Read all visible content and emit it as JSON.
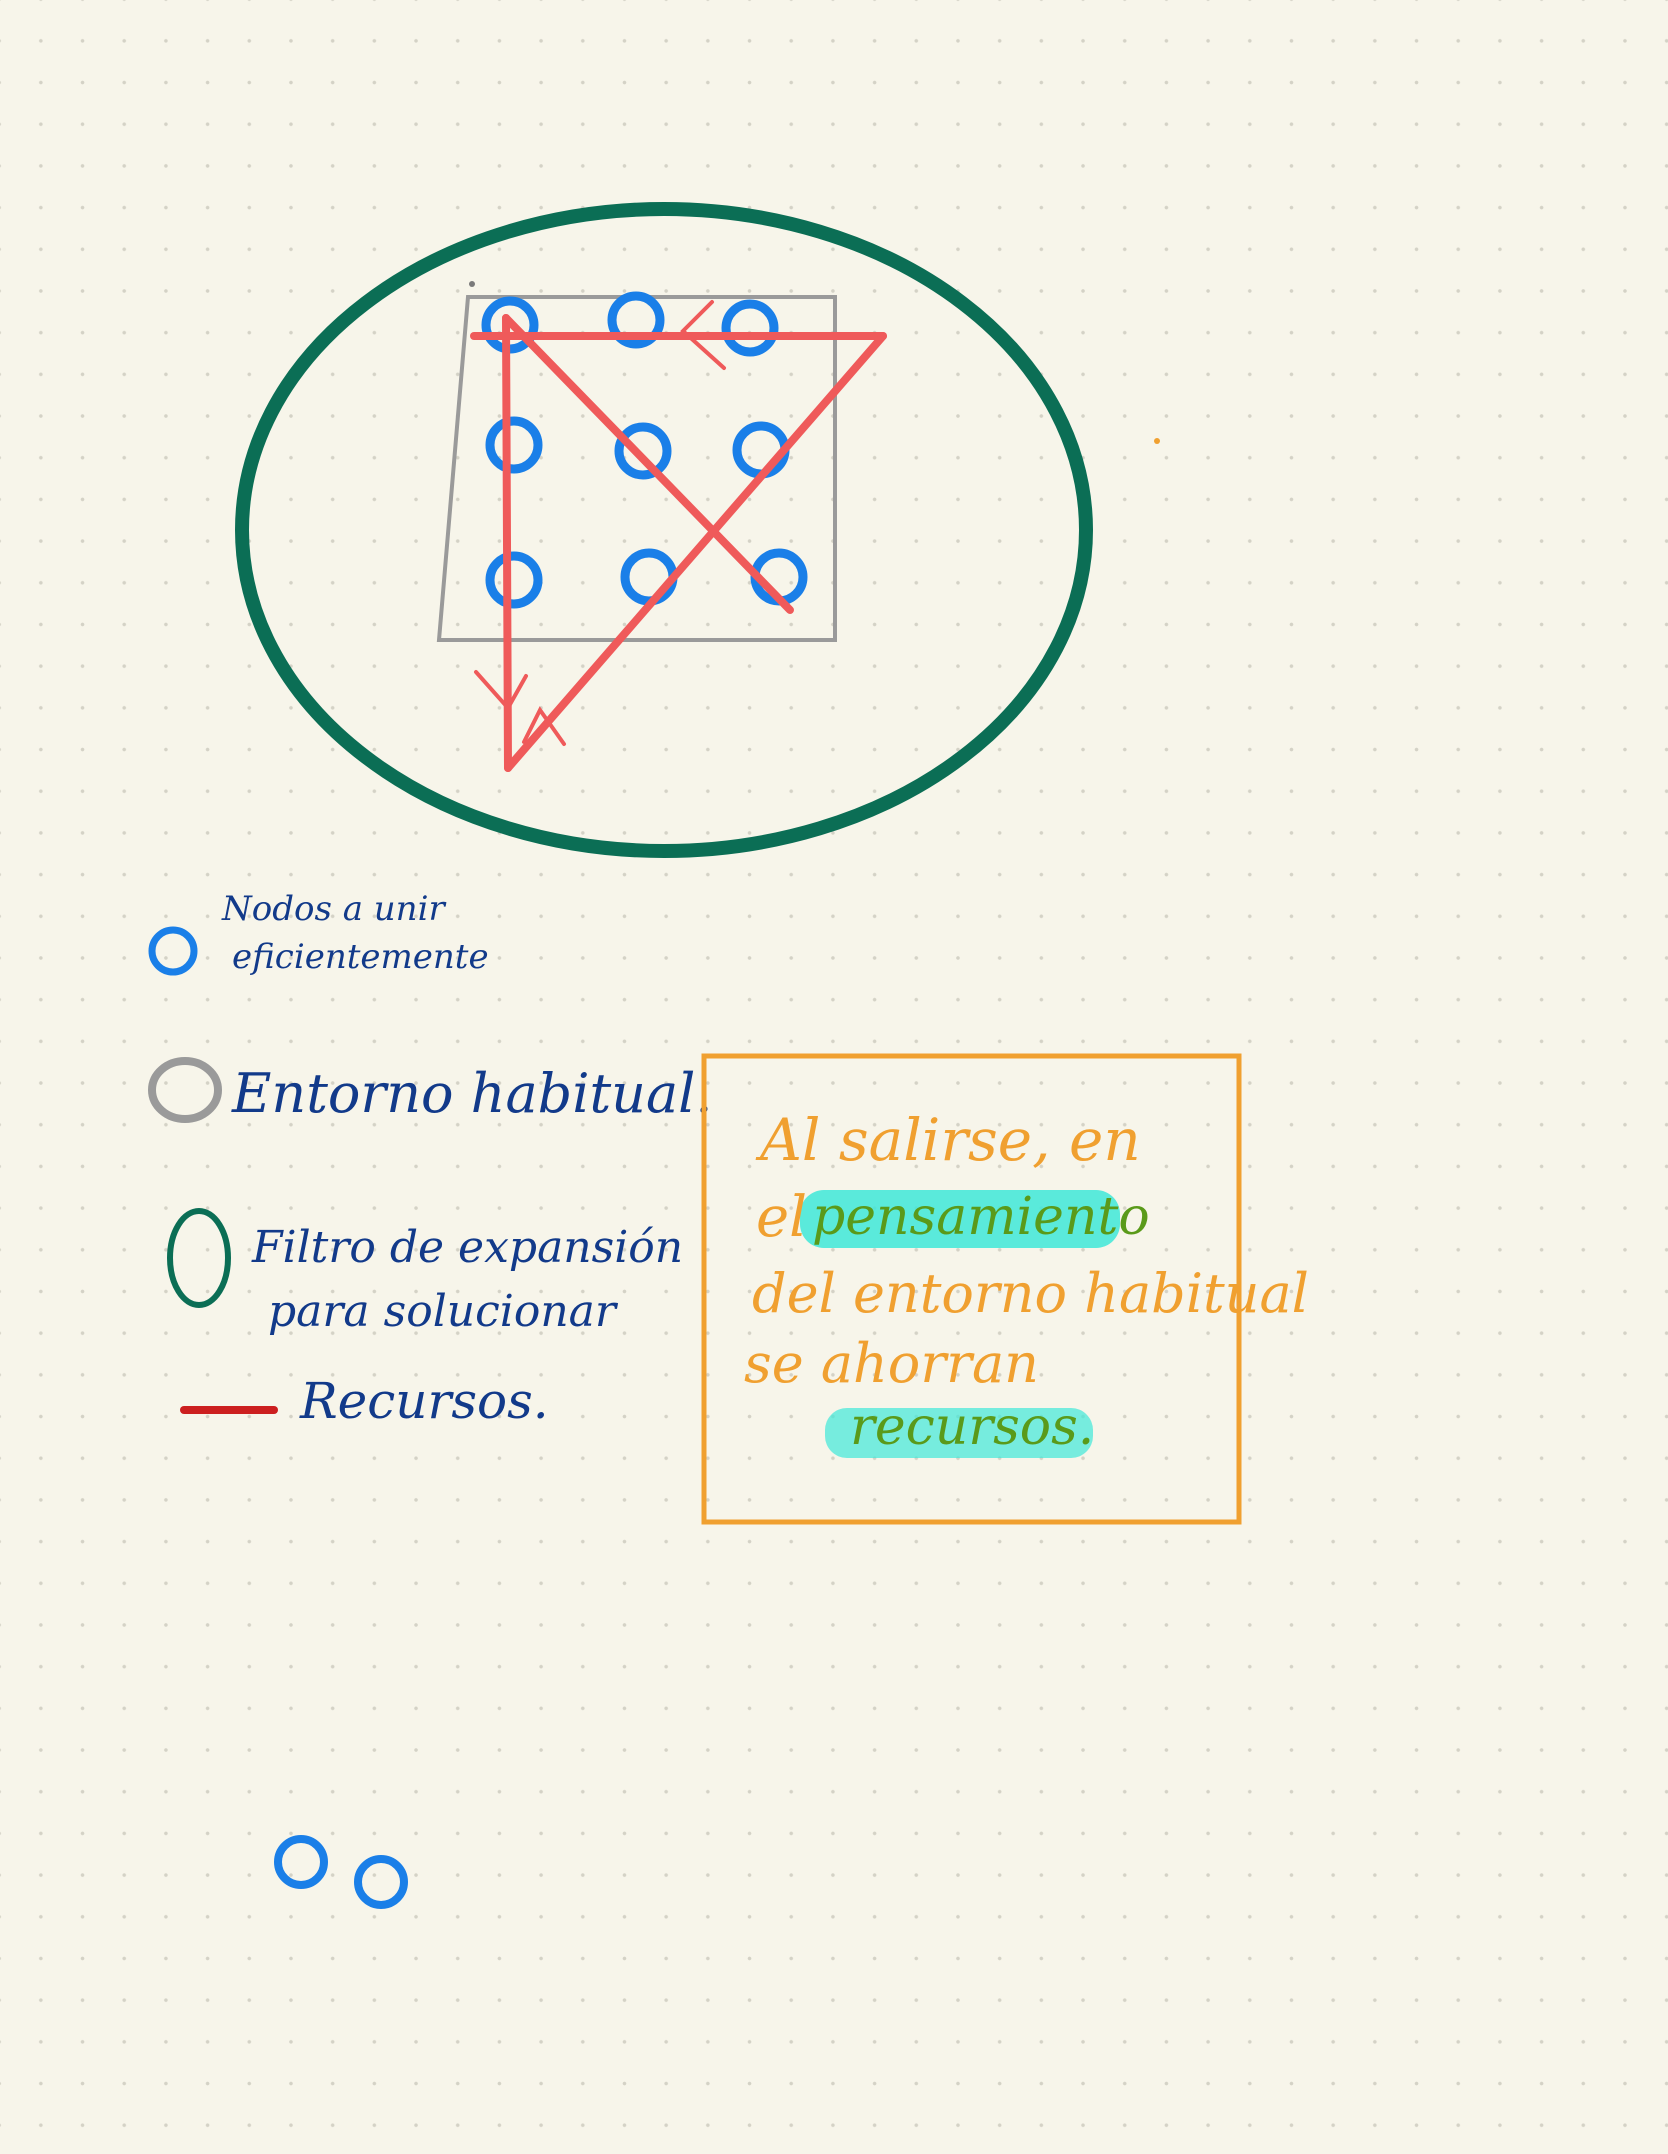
{
  "colors": {
    "paper": "#f7f5ea",
    "grid_dots": "#d4d2c6",
    "node_blue": "#1a7fe8",
    "ellipse_green": "#0b6e55",
    "frame_gray": "#9a9a9a",
    "path_red": "#ef5a5a",
    "legend_red": "#cc1f1f",
    "ink_navy": "#123a8a",
    "note_orange": "#f0a030",
    "highlight_cyan": "#3ee8d8",
    "highlight_text_green": "#5a9a1a"
  },
  "diagram": {
    "nodes_count": 9,
    "extra_nodes_count": 2,
    "icons": [
      "node-circle-icon",
      "green-ellipse-icon",
      "gray-frame-icon",
      "red-path-icon",
      "arrow-head-icon"
    ]
  },
  "legend": {
    "nodes": "Nodos a unir eficientemente",
    "environment": "Entorno habitual.",
    "filter_line1": "Filtro de expansión",
    "filter_line2": "para solucionar",
    "resources": "Recursos."
  },
  "note": {
    "line1": "Al salirse, en",
    "line2_prefix": "el",
    "line2_highlight": "pensamiento",
    "line3": "del entorno habitual",
    "line4": "se ahorran",
    "line5_highlight": "recursos."
  }
}
